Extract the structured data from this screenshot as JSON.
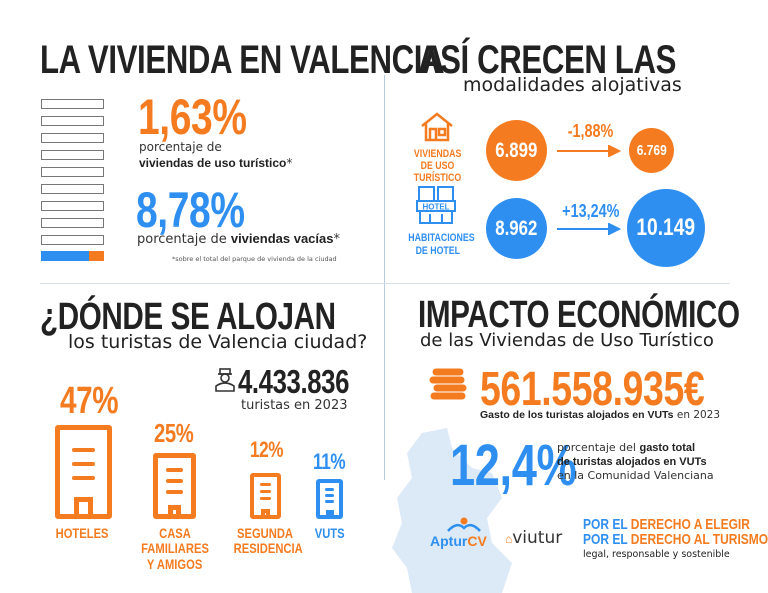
{
  "vivienda": {
    "title": "LA VIVIENDA EN VALENCIA",
    "stat1_value": "1,63%",
    "stat1_line1": "porcentaje de",
    "stat1_line2": "viviendas de uso turístico",
    "stat1_mark": "*",
    "stat2_value": "8,78%",
    "stat2_pre": "porcentaje de ",
    "stat2_bold": "viviendas vacías",
    "stat2_mark": "*",
    "footnote": "*sobre el total del parque de vivienda de la ciudad",
    "bar_fill_tourist_pct": 1.63,
    "bar_fill_empty_pct": 8.78
  },
  "crecen": {
    "title": "ASÍ CRECEN LAS",
    "subtitle": "modalidades alojativas",
    "rows": [
      {
        "label1": "VIVIENDAS",
        "label2": "DE USO TURÍSTICO",
        "icon": "house-icon",
        "from": "6.899",
        "change": "-1,88%",
        "to": "6.769",
        "color": "#f47b20"
      },
      {
        "label1": "HABITACIONES",
        "label2": "DE HOTEL",
        "icon": "hotel-icon",
        "icon_text": "HOTEL",
        "from": "8.962",
        "change": "+13,24%",
        "to": "10.149",
        "color": "#2e8ff0"
      }
    ]
  },
  "donde": {
    "title": "¿DÓNDE SE ALOJAN",
    "subtitle": "los turistas de Valencia ciudad?",
    "total": "4.433.836",
    "total_caption": "turistas en 2023",
    "categories": [
      {
        "pct": "47%",
        "label1": "HOTELES",
        "label2": ""
      },
      {
        "pct": "25%",
        "label1": "CASA FAMILIARES",
        "label2": "Y AMIGOS"
      },
      {
        "pct": "12%",
        "label1": "SEGUNDA",
        "label2": "RESIDENCIA"
      },
      {
        "pct": "11%",
        "label1": "VUTS",
        "label2": ""
      }
    ]
  },
  "impacto": {
    "title": "IMPACTO ECONÓMICO",
    "subtitle": "de las Viviendas de Uso Turístico",
    "amount": "561.558.935€",
    "amount_bold": "Gasto de los turistas alojados en VUTs",
    "amount_rest": " en 2023",
    "pct": "12,4%",
    "pct_line1_pre": "porcentaje del ",
    "pct_line1_bold": "gasto total",
    "pct_line2": "de turistas alojados en VUTs",
    "pct_line3": "en la Comunidad Valenciana"
  },
  "footer": {
    "logo1": "AptúrCV",
    "logo1_a": "Aptur",
    "logo1_b": "CV",
    "logo2": "viutur",
    "slogan1_a": "POR EL ",
    "slogan1_b": "DERECHO A ELEGIR",
    "slogan2_a": "POR EL ",
    "slogan2_b": "DERECHO AL TURISMO",
    "slogan3": "legal, responsable y sostenible"
  },
  "colors": {
    "orange": "#f47b20",
    "blue": "#2e8ff0",
    "dark": "#222222"
  }
}
